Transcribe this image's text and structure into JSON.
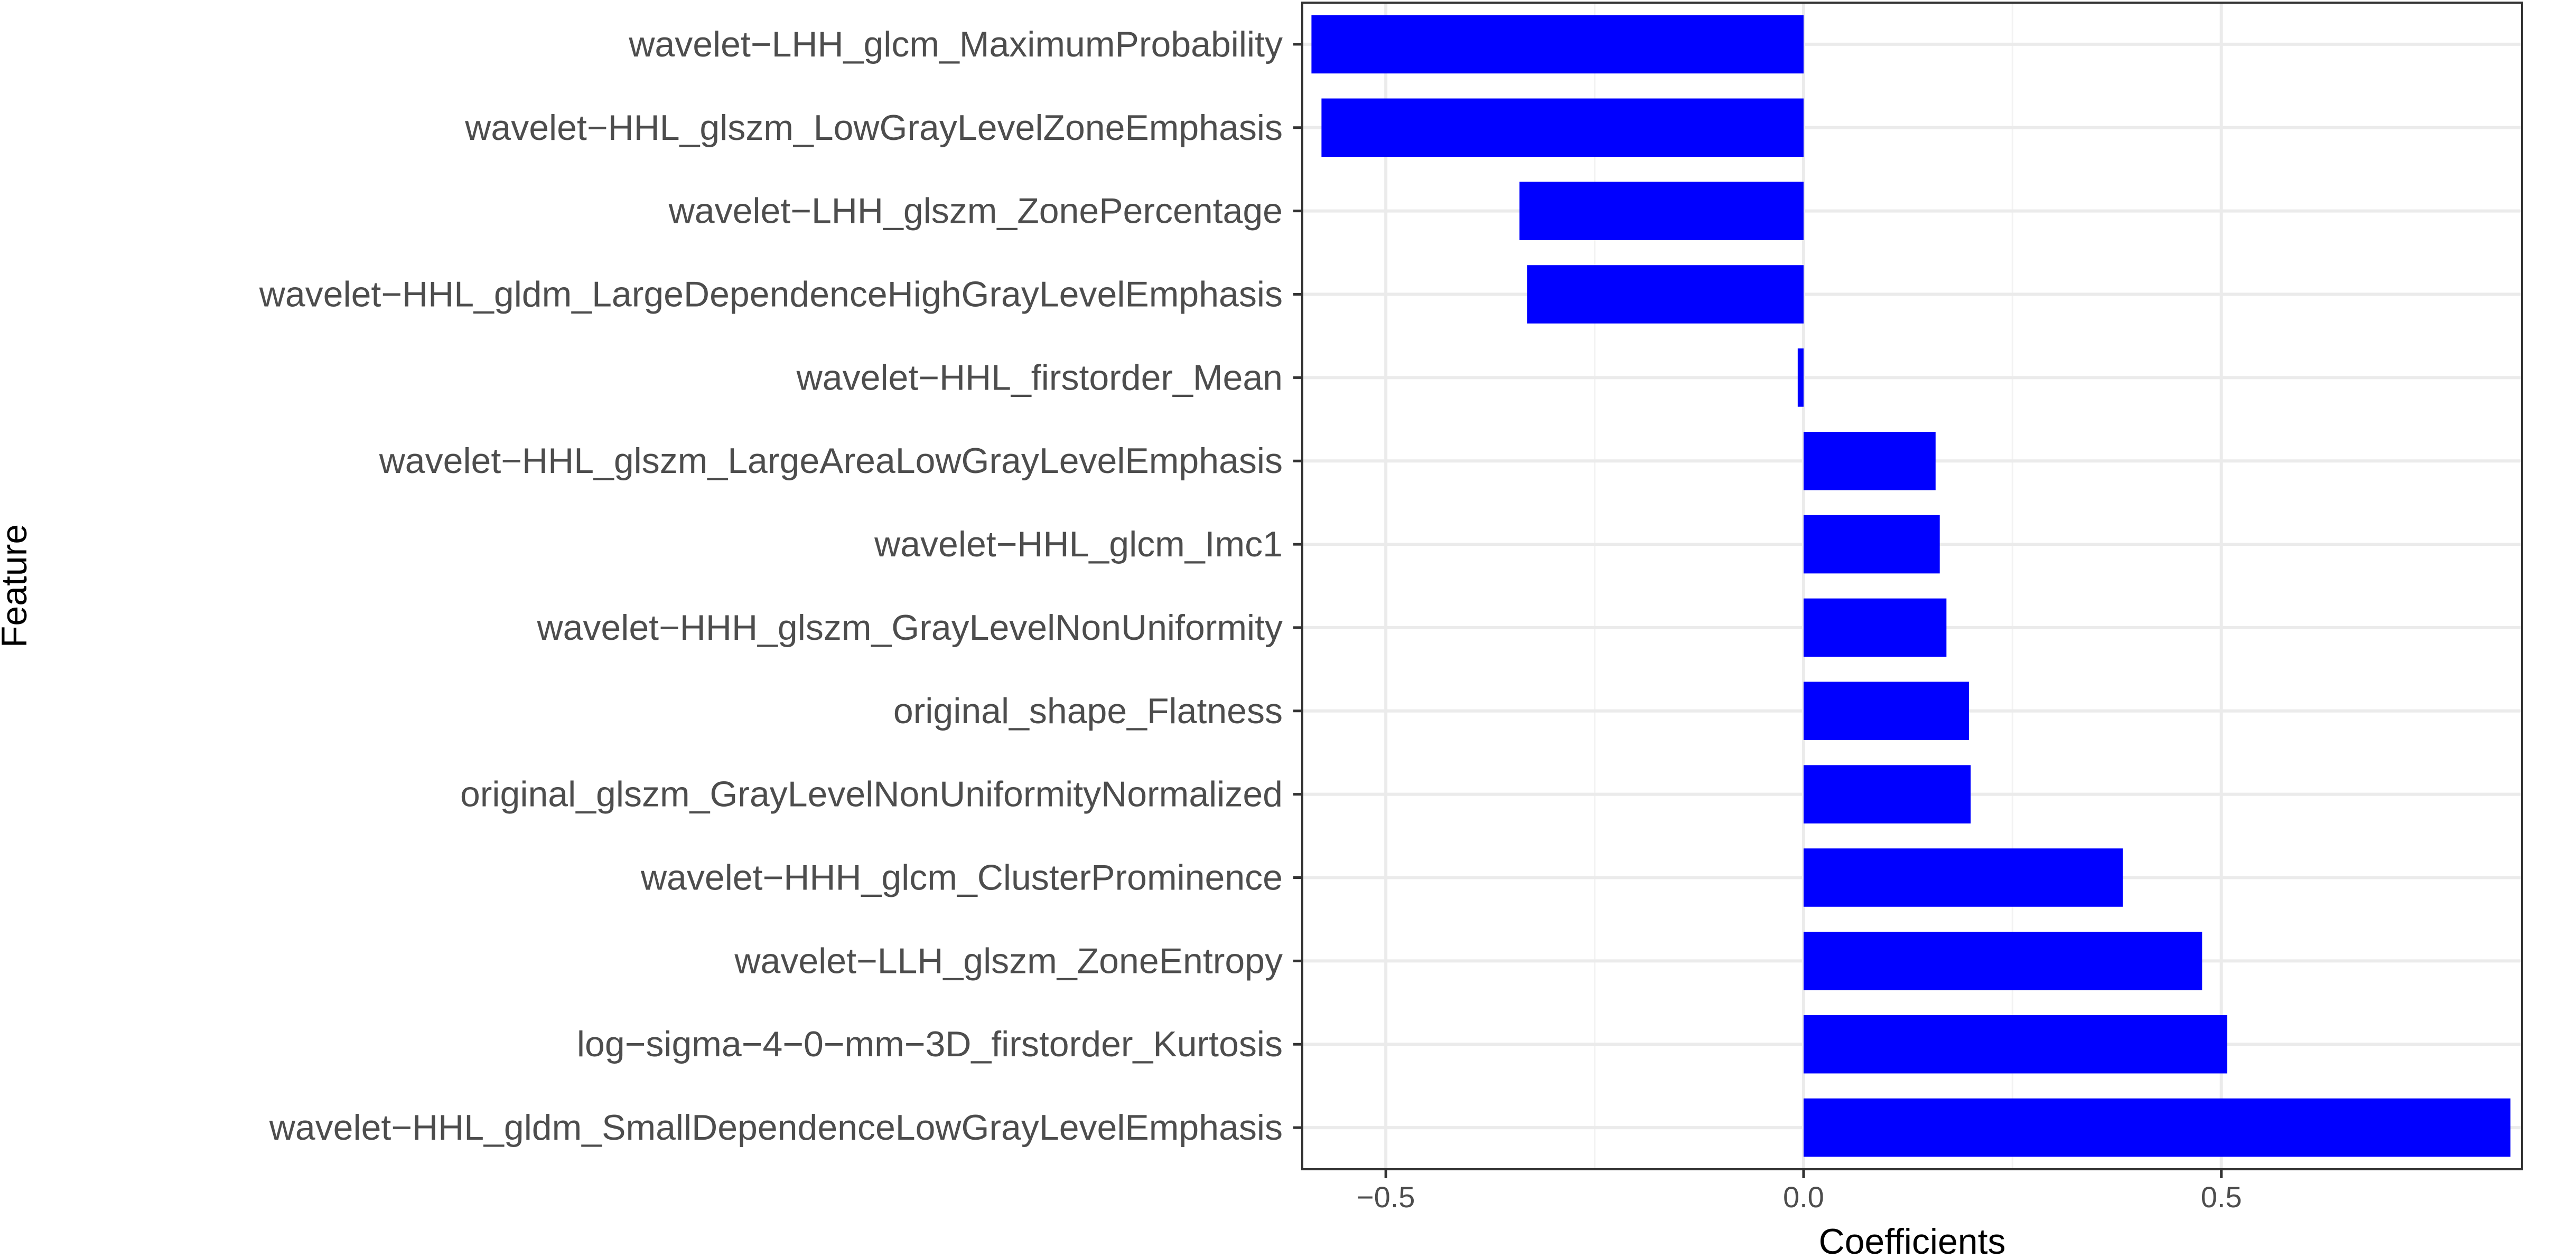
{
  "chart_data": {
    "type": "bar",
    "orientation": "horizontal",
    "xlabel": "Coefficients",
    "ylabel": "Feature",
    "xlim": [
      -0.6,
      0.86
    ],
    "x_ticks": [
      -0.5,
      0.0,
      0.5
    ],
    "x_tick_labels": [
      "−0.5",
      "0.0",
      "0.5"
    ],
    "grid": true,
    "bar_color": "#0000ff",
    "categories": [
      "wavelet−LHH_glcm_MaximumProbability",
      "wavelet−HHL_glszm_LowGrayLevelZoneEmphasis",
      "wavelet−LHH_glszm_ZonePercentage",
      "wavelet−HHL_gldm_LargeDependenceHighGrayLevelEmphasis",
      "wavelet−HHL_firstorder_Mean",
      "wavelet−HHL_glszm_LargeAreaLowGrayLevelEmphasis",
      "wavelet−HHL_glcm_Imc1",
      "wavelet−HHH_glszm_GrayLevelNonUniformity",
      "original_shape_Flatness",
      "original_glszm_GrayLevelNonUniformityNormalized",
      "wavelet−HHH_glcm_ClusterProminence",
      "wavelet−LLH_glszm_ZoneEntropy",
      "log−sigma−4−0−mm−3D_firstorder_Kurtosis",
      "wavelet−HHL_gldm_SmallDependenceLowGrayLevelEmphasis"
    ],
    "values": [
      -0.589,
      -0.577,
      -0.34,
      -0.331,
      -0.007,
      0.158,
      0.163,
      0.171,
      0.198,
      0.2,
      0.382,
      0.477,
      0.507,
      0.846
    ]
  }
}
